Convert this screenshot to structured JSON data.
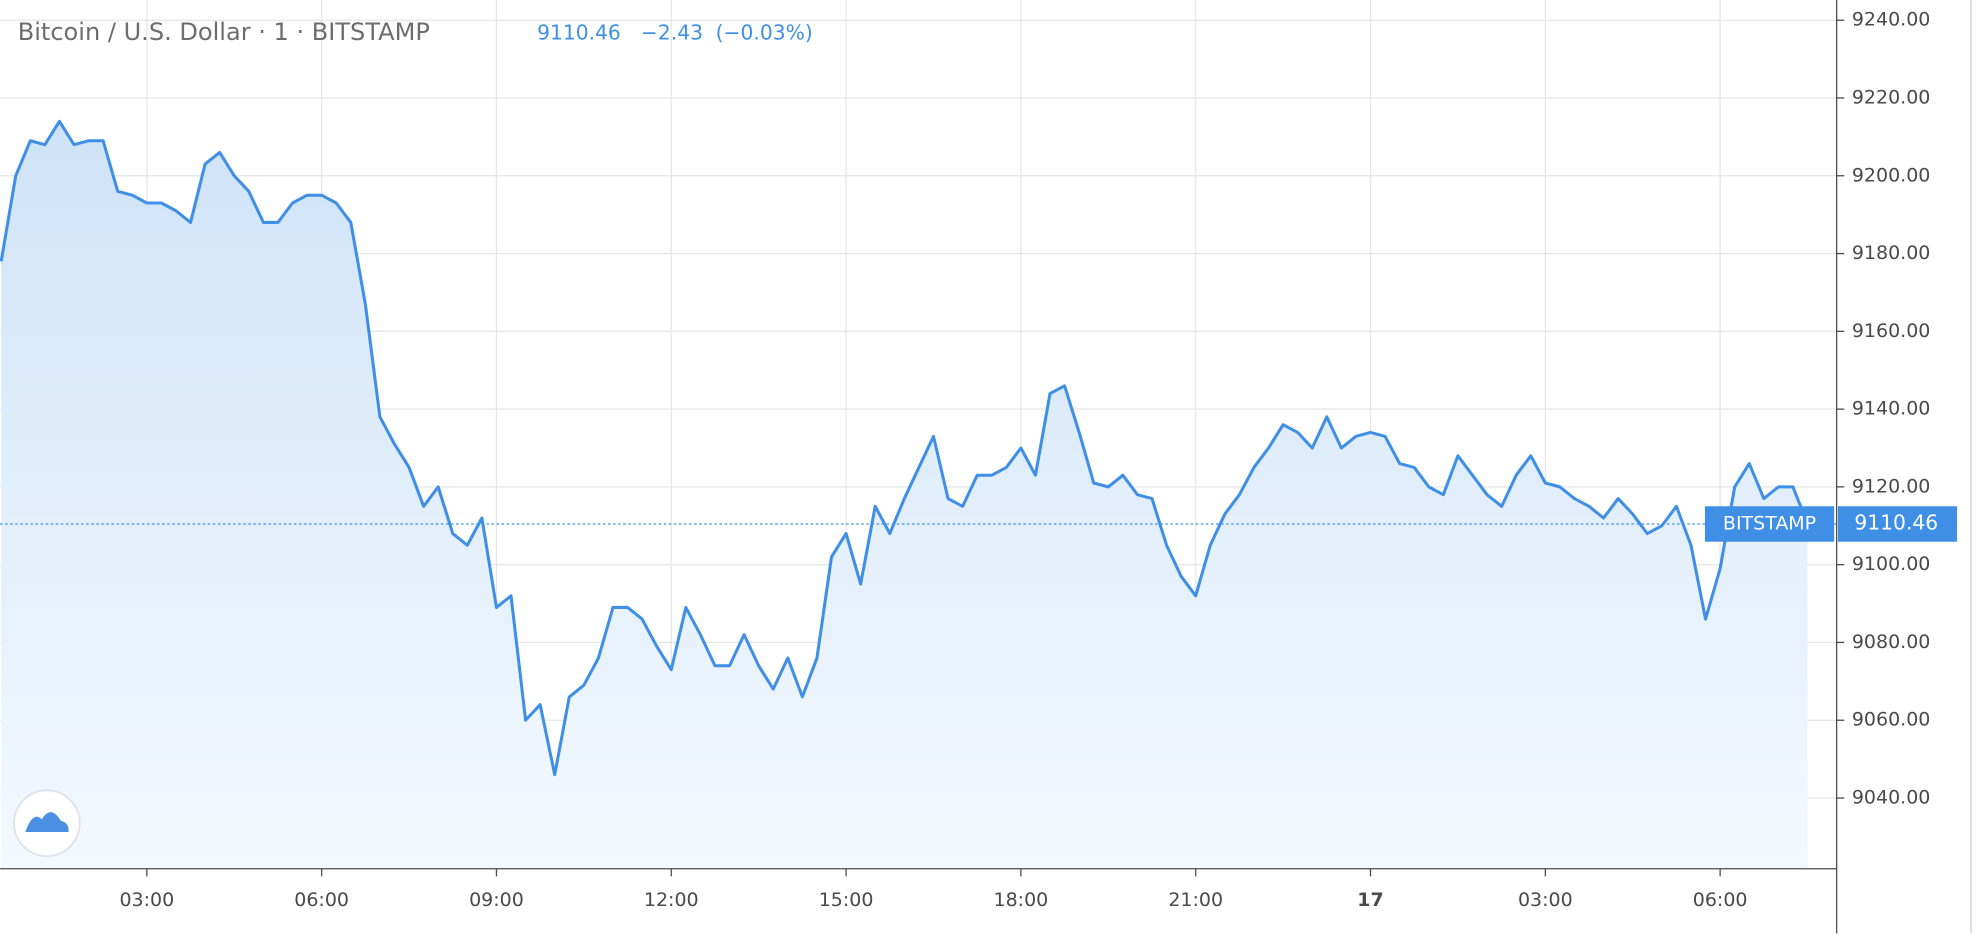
{
  "chart_data": {
    "type": "area",
    "title": "Bitcoin / U.S. Dollar · 1 · BITSTAMP",
    "last_price": 9110.46,
    "change_label": "−2.43",
    "change_pct_label": "(−0.03%)",
    "price_line_label": "BITSTAMP",
    "color": "#3f8fe6",
    "grid": true,
    "xlim": [
      0.48,
      32.0
    ],
    "ylim": [
      9021.8,
      9245.2
    ],
    "xticks": [
      {
        "value": 3,
        "label": "03:00"
      },
      {
        "value": 6,
        "label": "06:00"
      },
      {
        "value": 9,
        "label": "09:00"
      },
      {
        "value": 12,
        "label": "12:00"
      },
      {
        "value": 15,
        "label": "15:00"
      },
      {
        "value": 18,
        "label": "18:00"
      },
      {
        "value": 21,
        "label": "21:00"
      },
      {
        "value": 24,
        "label": "17"
      },
      {
        "value": 27,
        "label": "03:00"
      },
      {
        "value": 30,
        "label": "06:00"
      }
    ],
    "yticks": [
      {
        "value": 9040,
        "label": "9040.00"
      },
      {
        "value": 9060,
        "label": "9060.00"
      },
      {
        "value": 9080,
        "label": "9080.00"
      },
      {
        "value": 9100,
        "label": "9100.00"
      },
      {
        "value": 9120,
        "label": "9120.00"
      },
      {
        "value": 9140,
        "label": "9140.00"
      },
      {
        "value": 9160,
        "label": "9160.00"
      },
      {
        "value": 9180,
        "label": "9180.00"
      },
      {
        "value": 9200,
        "label": "9200.00"
      },
      {
        "value": 9220,
        "label": "9220.00"
      },
      {
        "value": 9240,
        "label": "9240.00"
      }
    ],
    "x": [
      0.5,
      0.75,
      1,
      1.25,
      1.5,
      1.75,
      2,
      2.25,
      2.5,
      2.75,
      3,
      3.25,
      3.5,
      3.75,
      4,
      4.25,
      4.5,
      4.75,
      5,
      5.25,
      5.5,
      5.75,
      6,
      6.25,
      6.5,
      6.75,
      7,
      7.25,
      7.5,
      7.75,
      8,
      8.25,
      8.5,
      8.75,
      9,
      9.25,
      9.5,
      9.75,
      10,
      10.25,
      10.5,
      10.75,
      11,
      11.25,
      11.5,
      11.75,
      12,
      12.25,
      12.5,
      12.75,
      13,
      13.25,
      13.5,
      13.75,
      14,
      14.25,
      14.5,
      14.75,
      15,
      15.25,
      15.5,
      15.75,
      16,
      16.25,
      16.5,
      16.75,
      17,
      17.25,
      17.5,
      17.75,
      18,
      18.25,
      18.5,
      18.75,
      19,
      19.25,
      19.5,
      19.75,
      20,
      20.25,
      20.5,
      20.75,
      21,
      21.25,
      21.5,
      21.75,
      22,
      22.25,
      22.5,
      22.75,
      23,
      23.25,
      23.5,
      23.75,
      24,
      24.25,
      24.5,
      24.75,
      25,
      25.25,
      25.5,
      25.75,
      26,
      26.25,
      26.5,
      26.75,
      27,
      27.25,
      27.5,
      27.75,
      28,
      28.25,
      28.5,
      28.75,
      29,
      29.25,
      29.5,
      29.75,
      30,
      30.25,
      30.5,
      30.75,
      31,
      31.25,
      31.5
    ],
    "values": [
      9178,
      9200,
      9209,
      9208,
      9214,
      9208,
      9209,
      9209,
      9196,
      9195,
      9193,
      9193,
      9191,
      9188,
      9203,
      9206,
      9200,
      9196,
      9188,
      9188,
      9193,
      9195,
      9195,
      9193,
      9188,
      9167,
      9138,
      9131,
      9125,
      9115,
      9120,
      9108,
      9105,
      9112,
      9089,
      9092,
      9060,
      9064,
      9046,
      9066,
      9069,
      9076,
      9089,
      9089,
      9086,
      9079,
      9073,
      9089,
      9082,
      9074,
      9074,
      9082,
      9074,
      9068,
      9076,
      9066,
      9076,
      9102,
      9108,
      9095,
      9115,
      9108,
      9117,
      9125,
      9133,
      9117,
      9115,
      9123,
      9123,
      9125,
      9130,
      9123,
      9144,
      9146,
      9134,
      9121,
      9120,
      9123,
      9118,
      9117,
      9105,
      9097,
      9092,
      9105,
      9113,
      9118,
      9125,
      9130,
      9136,
      9134,
      9130,
      9138,
      9130,
      9133,
      9134,
      9133,
      9126,
      9125,
      9120,
      9118,
      9128,
      9123,
      9118,
      9115,
      9123,
      9128,
      9121,
      9120,
      9117,
      9115,
      9112,
      9117,
      9113,
      9108,
      9110,
      9115,
      9105,
      9086,
      9099,
      9120,
      9126,
      9117,
      9120,
      9120,
      9110.46
    ]
  }
}
